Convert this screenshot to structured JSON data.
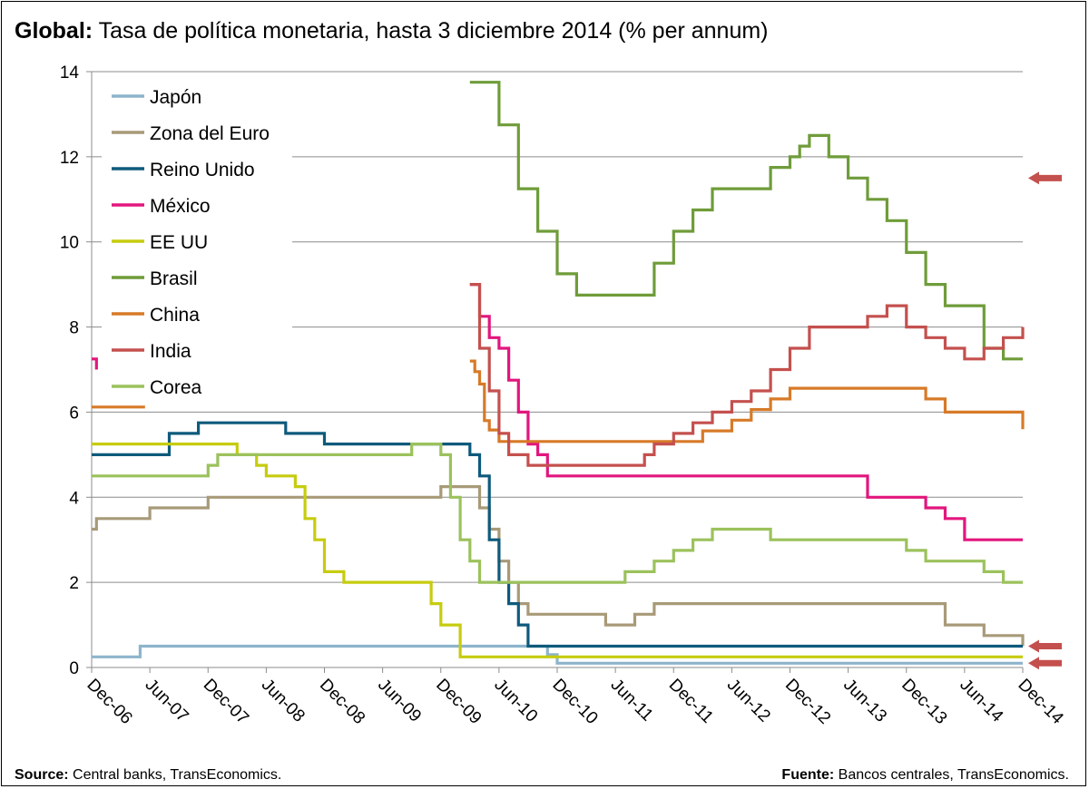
{
  "title": {
    "bold": "Global:",
    "text": "Tasa de política monetaria, hasta 3 diciembre 2014 (% per annum)"
  },
  "footer": {
    "source_label": "Source:",
    "source_text": "Central banks, TransEconomics.",
    "fuente_label": "Fuente:",
    "fuente_text": "Bancos centrales, TransEconomics."
  },
  "chart_data": {
    "type": "line",
    "step": true,
    "title": "Tasa de política monetaria, hasta 3 diciembre 2014 (% per annum)",
    "xlabel": "",
    "ylabel": "",
    "x_tick_labels": [
      "Dec-06",
      "Jun-07",
      "Dec-07",
      "Jun-08",
      "Dec-08",
      "Jun-09",
      "Dec-09",
      "Jun-10",
      "Dec-10",
      "Jun-11",
      "Dec-11",
      "Jun-12",
      "Dec-12",
      "Jun-13",
      "Dec-13",
      "Jun-14",
      "Dec-14"
    ],
    "x_range": [
      0,
      96
    ],
    "ylim": [
      0,
      14
    ],
    "y_ticks": [
      0,
      2,
      4,
      6,
      8,
      10,
      12,
      14
    ],
    "grid": true,
    "legend_position": "top-left",
    "series": [
      {
        "name": "Japón",
        "color": "#8DB4CC",
        "x": [
          0,
          5,
          47,
          48,
          96
        ],
        "y": [
          0.25,
          0.5,
          0.3,
          0.1,
          0.1
        ]
      },
      {
        "name": "Zona del Euro",
        "color": "#A89A78",
        "x": [
          0,
          0.5,
          6,
          12,
          36,
          40,
          41,
          42,
          43,
          44,
          45,
          53,
          54,
          56,
          58,
          88,
          92,
          96
        ],
        "y": [
          3.25,
          3.5,
          3.75,
          4.0,
          4.25,
          3.75,
          3.25,
          2.5,
          2.0,
          1.5,
          1.25,
          1.0,
          1.0,
          1.25,
          1.5,
          1.0,
          0.75,
          0.5
        ]
      },
      {
        "name": "Reino Unido",
        "color": "#0E5A7C",
        "x": [
          0,
          8,
          11,
          20,
          24,
          39,
          40,
          41,
          42,
          43,
          44,
          45,
          96
        ],
        "y": [
          5.0,
          5.5,
          5.75,
          5.5,
          5.25,
          5.0,
          4.5,
          3.0,
          2.0,
          1.5,
          1.0,
          0.5,
          0.5
        ]
      },
      {
        "name": "México",
        "color": "#E2167D",
        "x": [
          0,
          0.5,
          1.2,
          39,
          40,
          41,
          42,
          43,
          44,
          45,
          46,
          47,
          48,
          80,
          86,
          88,
          90,
          96
        ],
        "y": [
          7.25,
          7.0,
          null,
          9.0,
          8.25,
          7.75,
          7.5,
          6.75,
          6.0,
          5.25,
          5.0,
          4.5,
          4.5,
          4.0,
          3.75,
          3.5,
          3.0,
          3.0
        ]
      },
      {
        "name": "EE UU",
        "color": "#C6CC0E",
        "x": [
          0,
          15,
          17,
          18,
          21,
          22,
          23,
          24,
          26,
          35,
          36,
          38,
          39,
          96
        ],
        "y": [
          5.25,
          5.0,
          4.75,
          4.5,
          4.25,
          3.5,
          3.0,
          2.25,
          2.0,
          1.5,
          1.0,
          0.25,
          0.25,
          0.25
        ]
      },
      {
        "name": "Brasil",
        "color": "#6F9C3A",
        "x": [
          39,
          42,
          44,
          46,
          48,
          50,
          58,
          60,
          62,
          64,
          70,
          72,
          73,
          74,
          76,
          78,
          80,
          82,
          84,
          86,
          88,
          92,
          94,
          96
        ],
        "y": [
          13.75,
          12.75,
          11.25,
          10.25,
          9.25,
          8.75,
          9.5,
          10.25,
          10.75,
          11.25,
          11.75,
          12.0,
          12.25,
          12.5,
          12.0,
          11.5,
          11.0,
          10.5,
          9.75,
          9.0,
          8.5,
          7.5,
          7.25,
          7.25
        ]
      },
      {
        "name": "China",
        "color": "#D77A28",
        "x": [
          0,
          5.5,
          null,
          39,
          39.5,
          40,
          40.5,
          41,
          42,
          63,
          66,
          68,
          70,
          72,
          74,
          76,
          80,
          86,
          88,
          94,
          96
        ],
        "y": [
          6.12,
          6.12,
          null,
          7.2,
          6.95,
          6.66,
          5.8,
          5.58,
          5.31,
          5.56,
          5.81,
          6.06,
          6.31,
          6.56,
          6.56,
          6.56,
          6.56,
          6.31,
          6.0,
          6.0,
          5.6
        ]
      },
      {
        "name": "India",
        "color": "#C4504E",
        "x": [
          39,
          40,
          41,
          42,
          43,
          45,
          47,
          57,
          58,
          60,
          62,
          64,
          66,
          68,
          70,
          72,
          74,
          80,
          82,
          84,
          86,
          88,
          90,
          92,
          94,
          96
        ],
        "y": [
          9.0,
          7.5,
          6.5,
          5.5,
          5.0,
          4.75,
          4.75,
          5.0,
          5.25,
          5.5,
          5.75,
          6.0,
          6.25,
          6.5,
          7.0,
          7.5,
          8.0,
          8.25,
          8.5,
          8.0,
          7.75,
          7.5,
          7.25,
          7.5,
          7.75,
          8.0
        ]
      },
      {
        "name": "Corea",
        "color": "#9BC25C",
        "x": [
          0,
          12,
          13,
          14,
          33,
          36,
          37,
          38,
          39,
          40,
          41,
          42,
          43,
          44,
          55,
          58,
          60,
          62,
          64,
          66,
          68,
          70,
          84,
          86,
          88,
          92,
          94,
          96
        ],
        "y": [
          4.5,
          4.75,
          5.0,
          5.0,
          5.25,
          5.0,
          4.0,
          3.0,
          2.5,
          2.0,
          2.0,
          2.0,
          2.0,
          2.0,
          2.25,
          2.5,
          2.75,
          3.0,
          3.25,
          3.25,
          3.25,
          3.0,
          2.75,
          2.5,
          2.5,
          2.25,
          2.0,
          2.0
        ]
      }
    ],
    "annotations": [
      {
        "type": "arrow",
        "color": "#C4504E",
        "y": 11.5
      },
      {
        "type": "arrow",
        "color": "#C4504E",
        "y": 0.5
      },
      {
        "type": "arrow",
        "color": "#C4504E",
        "y": 0.1
      }
    ]
  }
}
